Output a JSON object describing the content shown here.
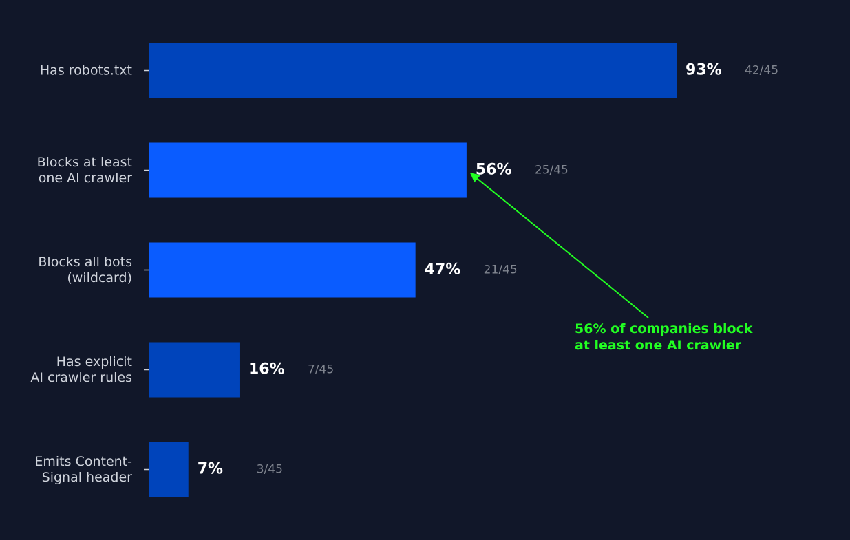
{
  "chart_data": {
    "type": "bar",
    "orientation": "horizontal",
    "categories": [
      "Has robots.txt",
      "Blocks at least\none AI crawler",
      "Blocks all bots\n(wildcard)",
      "Has explicit\nAI crawler rules",
      "Emits Content-\nSignal header"
    ],
    "values": [
      93,
      56,
      47,
      16,
      7
    ],
    "value_labels": [
      "93%",
      "56%",
      "47%",
      "16%",
      "7%"
    ],
    "count_labels": [
      "42/45",
      "25/45",
      "21/45",
      "7/45",
      "3/45"
    ],
    "colors": [
      "#0044bb",
      "#0a5cff",
      "#0a5cff",
      "#0044bb",
      "#0044bb"
    ],
    "xlim": [
      0,
      121
    ],
    "annotation": {
      "text": "56% of companies block\nat least one AI crawler",
      "color": "#22ff22"
    }
  }
}
